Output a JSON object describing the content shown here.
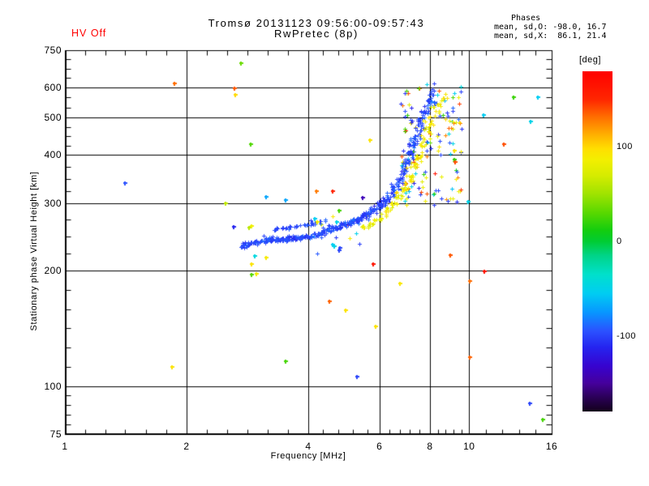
{
  "header": {
    "hv_status": "HV Off",
    "title": "Tromsø 20131123 09:56:00-09:57:43",
    "subtitle": "RwPretec (8p)",
    "phases": {
      "title": "Phases",
      "line_o": "mean, sd,O: -98.0, 16.7",
      "line_x": "mean, sd,X:  86.1, 21.4"
    }
  },
  "chart_data": {
    "type": "scatter",
    "title": "Tromsø 20131123 09:56:00-09:57:43",
    "subtitle": "RwPretec (8p)",
    "xlabel": "Frequency [MHz]",
    "ylabel": "Stationary phase Virtual Height [km]",
    "xscale": "log",
    "yscale": "log",
    "xlim": [
      1,
      16
    ],
    "ylim": [
      75,
      750
    ],
    "xticks": [
      1,
      2,
      4,
      6,
      8,
      10,
      16
    ],
    "xticks_minor": [
      1.12,
      1.26,
      1.41,
      1.59,
      1.78,
      2.24,
      2.52,
      2.83,
      3.17,
      3.56,
      4.35,
      4.74,
      5.16,
      5.61,
      6.35,
      6.73,
      7.13,
      7.55,
      8.37,
      8.75,
      9.15,
      9.57,
      10.99,
      12.08,
      13.27,
      14.59
    ],
    "yticks": [
      75,
      100,
      200,
      300,
      400,
      500,
      600,
      750
    ],
    "yticks_minor": [
      79.5,
      84.3,
      89.3,
      94.7,
      112.2,
      126.0,
      141.4,
      158.7,
      178.2,
      221.3,
      245.0,
      271.1,
      322.4,
      346.5,
      372.3,
      423.0,
      447.2,
      472.9,
      531.4,
      564.7,
      634.5,
      670.9,
      709.5
    ],
    "grid": "major-black",
    "marker": "plus",
    "stats": {
      "o_mean_phase": -98.0,
      "o_sd": 16.7,
      "x_mean_phase": 86.1,
      "x_sd": 21.4
    },
    "colorbar": {
      "label": "[deg]",
      "range": [
        -180,
        180
      ],
      "ticks": [
        100,
        0,
        -100
      ],
      "stops": [
        {
          "v": 180,
          "c": "#ff0000"
        },
        {
          "v": 150,
          "c": "#ff2600"
        },
        {
          "v": 132,
          "c": "#ff6c00"
        },
        {
          "v": 112,
          "c": "#ffb300"
        },
        {
          "v": 98,
          "c": "#ffdf00"
        },
        {
          "v": 86,
          "c": "#f2ef00"
        },
        {
          "v": 70,
          "c": "#d6ec00"
        },
        {
          "v": 50,
          "c": "#9fe300"
        },
        {
          "v": 30,
          "c": "#57d800"
        },
        {
          "v": 12,
          "c": "#14cd0e"
        },
        {
          "v": 0,
          "c": "#00cc33"
        },
        {
          "v": -15,
          "c": "#00d488"
        },
        {
          "v": -35,
          "c": "#00e0cb"
        },
        {
          "v": -55,
          "c": "#00cdf2"
        },
        {
          "v": -75,
          "c": "#0797ff"
        },
        {
          "v": -95,
          "c": "#2b51ff"
        },
        {
          "v": -112,
          "c": "#2524ef"
        },
        {
          "v": -132,
          "c": "#3703cf"
        },
        {
          "v": -150,
          "c": "#45009c"
        },
        {
          "v": -165,
          "c": "#2b0058"
        },
        {
          "v": -180,
          "c": "#13001a"
        }
      ]
    },
    "seed": 20131123,
    "series": [
      {
        "name": "O-mode trace",
        "phase_mean": -98,
        "phase_sd": 16.7,
        "nodes": [
          [
            2.78,
            231,
            8,
            3
          ],
          [
            2.8,
            234,
            10,
            3
          ],
          [
            2.9,
            236,
            12,
            3
          ],
          [
            3.0,
            237,
            12,
            3
          ],
          [
            3.1,
            238,
            12,
            4
          ],
          [
            3.2,
            240,
            12,
            4
          ],
          [
            3.3,
            241,
            12,
            4
          ],
          [
            3.4,
            241,
            12,
            4
          ],
          [
            3.5,
            242,
            12,
            4
          ],
          [
            3.6,
            243,
            12,
            4
          ],
          [
            3.7,
            244,
            12,
            4
          ],
          [
            3.8,
            244,
            12,
            4
          ],
          [
            3.9,
            245,
            12,
            4
          ],
          [
            4.0,
            246,
            12,
            5
          ],
          [
            4.15,
            248,
            12,
            5
          ],
          [
            4.3,
            251,
            12,
            5
          ],
          [
            4.45,
            254,
            12,
            5
          ],
          [
            4.6,
            257,
            12,
            5
          ],
          [
            4.75,
            260,
            12,
            5
          ],
          [
            4.9,
            263,
            12,
            6
          ],
          [
            5.05,
            266,
            12,
            6
          ],
          [
            5.2,
            269,
            12,
            6
          ],
          [
            5.35,
            273,
            12,
            6
          ],
          [
            5.5,
            277,
            12,
            6
          ],
          [
            5.65,
            282,
            12,
            6
          ],
          [
            5.8,
            287,
            12,
            7
          ],
          [
            5.95,
            293,
            12,
            7
          ],
          [
            6.1,
            300,
            12,
            8
          ],
          [
            6.25,
            308,
            12,
            9
          ],
          [
            6.4,
            318,
            12,
            10
          ],
          [
            6.55,
            330,
            12,
            12
          ],
          [
            6.7,
            344,
            13,
            14
          ],
          [
            6.85,
            361,
            13,
            16
          ],
          [
            7.0,
            381,
            13,
            18
          ],
          [
            7.15,
            404,
            13,
            20
          ],
          [
            7.3,
            430,
            13,
            22
          ],
          [
            7.45,
            458,
            13,
            24
          ],
          [
            7.6,
            487,
            13,
            26
          ],
          [
            7.75,
            515,
            12,
            28
          ],
          [
            7.9,
            540,
            10,
            30
          ],
          [
            8.05,
            560,
            8,
            32
          ],
          [
            8.2,
            575,
            6,
            34
          ]
        ]
      },
      {
        "name": "O-mode second band",
        "phase_mean": -98,
        "phase_sd": 12,
        "nodes": [
          [
            3.3,
            256,
            5,
            3
          ],
          [
            3.45,
            258,
            5,
            3
          ],
          [
            3.6,
            260,
            5,
            3
          ],
          [
            3.75,
            261,
            5,
            3
          ],
          [
            3.9,
            263,
            5,
            3
          ],
          [
            4.05,
            265,
            4,
            4
          ],
          [
            4.2,
            267,
            4,
            4
          ],
          [
            4.35,
            270,
            4,
            4
          ]
        ]
      },
      {
        "name": "X-mode trace",
        "phase_mean": 86,
        "phase_sd": 21.4,
        "nodes": [
          [
            5.5,
            260,
            5,
            4
          ],
          [
            5.7,
            265,
            6,
            5
          ],
          [
            5.9,
            271,
            6,
            5
          ],
          [
            6.1,
            278,
            7,
            6
          ],
          [
            6.3,
            287,
            8,
            7
          ],
          [
            6.5,
            298,
            9,
            8
          ],
          [
            6.7,
            311,
            10,
            10
          ],
          [
            6.9,
            327,
            10,
            12
          ],
          [
            7.1,
            347,
            10,
            14
          ],
          [
            7.3,
            371,
            10,
            16
          ],
          [
            7.5,
            399,
            10,
            18
          ],
          [
            7.7,
            430,
            9,
            20
          ],
          [
            7.9,
            462,
            9,
            22
          ],
          [
            8.1,
            494,
            8,
            24
          ],
          [
            8.3,
            522,
            6,
            26
          ],
          [
            8.5,
            545,
            5,
            27
          ],
          [
            8.7,
            562,
            4,
            28
          ]
        ]
      }
    ],
    "clouds": [
      {
        "name": "crest scatter",
        "count": 140,
        "f_range": [
          6.7,
          9.6
        ],
        "h_range": [
          295,
          615
        ],
        "phase_choices": [
          [
            -100,
            22,
            40
          ],
          [
            -52,
            15,
            13
          ],
          [
            85,
            18,
            22
          ],
          [
            25,
            18,
            10
          ],
          [
            135,
            20,
            10
          ],
          [
            170,
            8,
            5
          ]
        ]
      },
      {
        "name": "sub-band sprinkle",
        "count": 10,
        "f_range": [
          4.2,
          6.2
        ],
        "h_range": [
          210,
          280
        ],
        "phase_choices": [
          [
            -100,
            15,
            30
          ],
          [
            -50,
            15,
            20
          ],
          [
            90,
            15,
            30
          ],
          [
            140,
            15,
            20
          ]
        ]
      }
    ],
    "outliers": [
      [
        1.41,
        338,
        -95
      ],
      [
        1.84,
        112,
        95
      ],
      [
        1.87,
        615,
        132
      ],
      [
        2.5,
        300,
        62
      ],
      [
        2.61,
        260,
        -112
      ],
      [
        2.63,
        596,
        138
      ],
      [
        2.64,
        574,
        100
      ],
      [
        2.73,
        695,
        35
      ],
      [
        2.85,
        259,
        60
      ],
      [
        2.88,
        426,
        28
      ],
      [
        2.9,
        262,
        85
      ],
      [
        2.9,
        208,
        95
      ],
      [
        2.9,
        195,
        30
      ],
      [
        2.98,
        196,
        88
      ],
      [
        2.95,
        218,
        -45
      ],
      [
        3.15,
        216,
        90
      ],
      [
        3.15,
        311,
        -70
      ],
      [
        3.52,
        305,
        -70
      ],
      [
        3.52,
        116,
        25
      ],
      [
        4.19,
        322,
        128
      ],
      [
        4.6,
        322,
        155
      ],
      [
        4.6,
        234,
        -55
      ],
      [
        4.71,
        268,
        -50
      ],
      [
        4.77,
        286,
        25
      ],
      [
        4.77,
        226,
        -100
      ],
      [
        4.2,
        268,
        90
      ],
      [
        4.15,
        273,
        -55
      ],
      [
        4.64,
        232,
        -50
      ],
      [
        4.79,
        229,
        -100
      ],
      [
        4.51,
        166,
        135
      ],
      [
        4.95,
        158,
        95
      ],
      [
        5.27,
        106,
        -100
      ],
      [
        5.45,
        310,
        -140
      ],
      [
        5.69,
        438,
        95
      ],
      [
        5.78,
        208,
        165
      ],
      [
        5.86,
        143,
        95
      ],
      [
        6.75,
        185,
        92
      ],
      [
        8.97,
        219,
        138
      ],
      [
        9.2,
        411,
        95
      ],
      [
        9.2,
        390,
        20
      ],
      [
        9.22,
        383,
        140
      ],
      [
        9.96,
        302,
        -50
      ],
      [
        10.03,
        188,
        132
      ],
      [
        10.03,
        119,
        135
      ],
      [
        10.86,
        509,
        -55
      ],
      [
        10.9,
        199,
        168
      ],
      [
        12.2,
        426,
        140
      ],
      [
        12.86,
        565,
        22
      ],
      [
        14.1,
        90,
        -100
      ],
      [
        14.2,
        490,
        -50
      ],
      [
        14.8,
        567,
        -55
      ],
      [
        15.2,
        82,
        25
      ]
    ]
  }
}
